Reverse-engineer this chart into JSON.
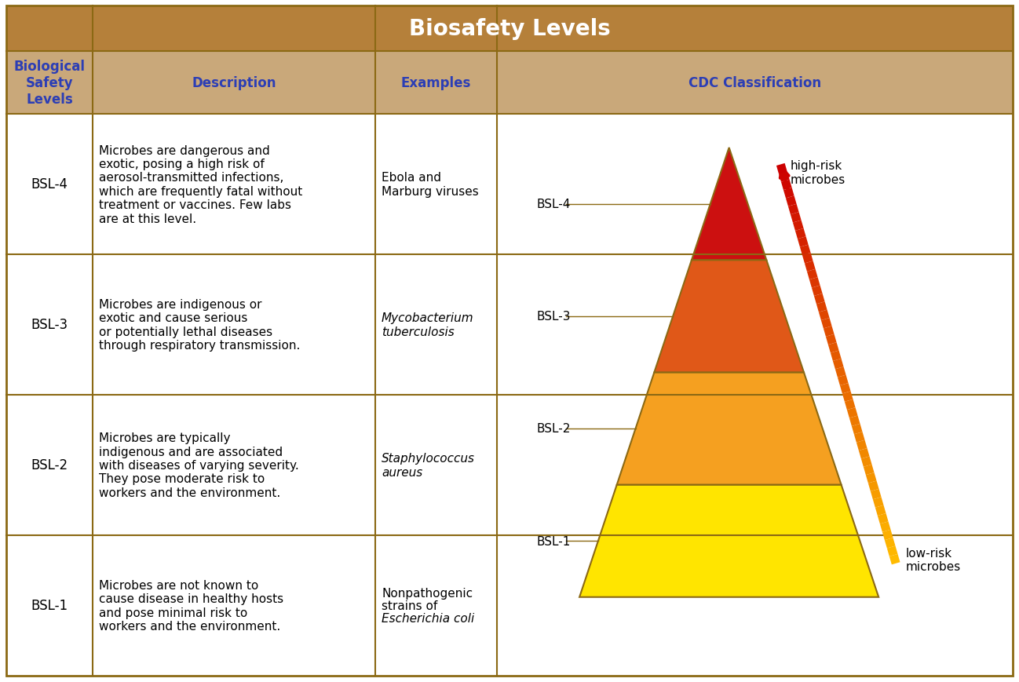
{
  "title": "Biosafety Levels",
  "title_bg": "#b5803a",
  "title_color": "#ffffff",
  "header_bg": "#c9a87a",
  "header_text_color": "#2c3eb5",
  "col_headers": [
    "Biological\nSafety\nLevels",
    "Description",
    "Examples",
    "CDC Classification"
  ],
  "rows": [
    {
      "level": "BSL-4",
      "description": "Microbes are dangerous and\nexotic, posing a high risk of\naerosol-transmitted infections,\nwhich are frequently fatal without\ntreatment or vaccines. Few labs\nare at this level.",
      "examples": "Ebola and\nMarburg viruses",
      "examples_italic": false
    },
    {
      "level": "BSL-3",
      "description": "Microbes are indigenous or\nexotic and cause serious\nor potentially lethal diseases\nthrough respiratory transmission.",
      "examples": "Mycobacterium\ntuberculosis",
      "examples_italic": true
    },
    {
      "level": "BSL-2",
      "description": "Microbes are typically\nindigenous and are associated\nwith diseases of varying severity.\nThey pose moderate risk to\nworkers and the environment.",
      "examples": "Staphylococcus\naureus",
      "examples_italic": true
    },
    {
      "level": "BSL-1",
      "description": "Microbes are not known to\ncause disease in healthy hosts\nand pose minimal risk to\nworkers and the environment.",
      "examples": "Nonpathogenic\nstrains of\nEscherichia coli",
      "examples_italic_partial": true,
      "examples_lines": [
        "Nonpathogenic",
        "strains of",
        "Escherichia coli"
      ],
      "examples_italic_lines": [
        false,
        false,
        true
      ]
    }
  ],
  "border_color": "#8b6914",
  "body_bg": "#ffffff",
  "body_text_color": "#000000",
  "pyramid_colors": [
    "#ffe500",
    "#f0a030",
    "#e05010",
    "#cc0000"
  ],
  "pyramid_border": "#8b6914",
  "arrow_color_top": "#cc0000",
  "arrow_color_bottom": "#ffaa00",
  "high_risk_label": "high-risk\nmicrobes",
  "low_risk_label": "low-risk\nmicrobes",
  "bsl_labels": [
    "BSL-4",
    "BSL-3",
    "BSL-2",
    "BSL-1"
  ]
}
